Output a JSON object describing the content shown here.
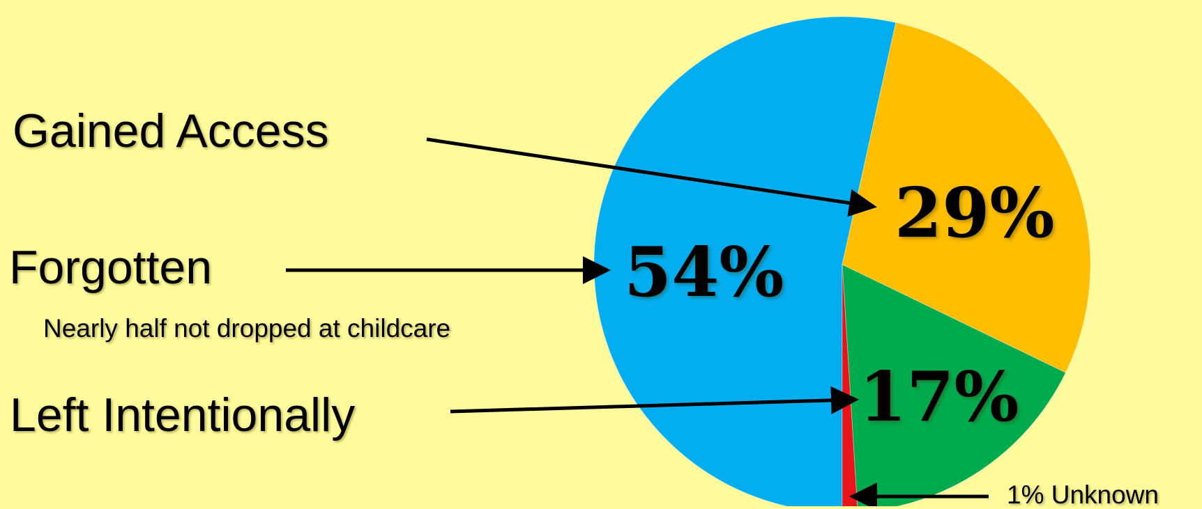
{
  "chart_data": {
    "type": "pie",
    "slices": [
      {
        "label": "Forgotten",
        "value": 54,
        "color": "#02AEEF"
      },
      {
        "label": "Gained Access",
        "value": 29,
        "color": "#FFBE00"
      },
      {
        "label": "Left Intentionally",
        "value": 17,
        "color": "#00AB4E"
      },
      {
        "label": "Unknown",
        "value": 1,
        "color": "#E8141C"
      }
    ],
    "data_labels": [
      "54%",
      "29%",
      "17%"
    ],
    "annotations": {
      "gained_access": "Gained Access",
      "forgotten": "Forgotten",
      "forgotten_note": "Nearly half not dropped at childcare",
      "left_intentionally": "Left Intentionally",
      "unknown": "1% Unknown"
    },
    "start_angle_deg": 180,
    "direction": "clockwise"
  },
  "colors": {
    "background": "#FFFB9C",
    "arrow": "#000000"
  }
}
